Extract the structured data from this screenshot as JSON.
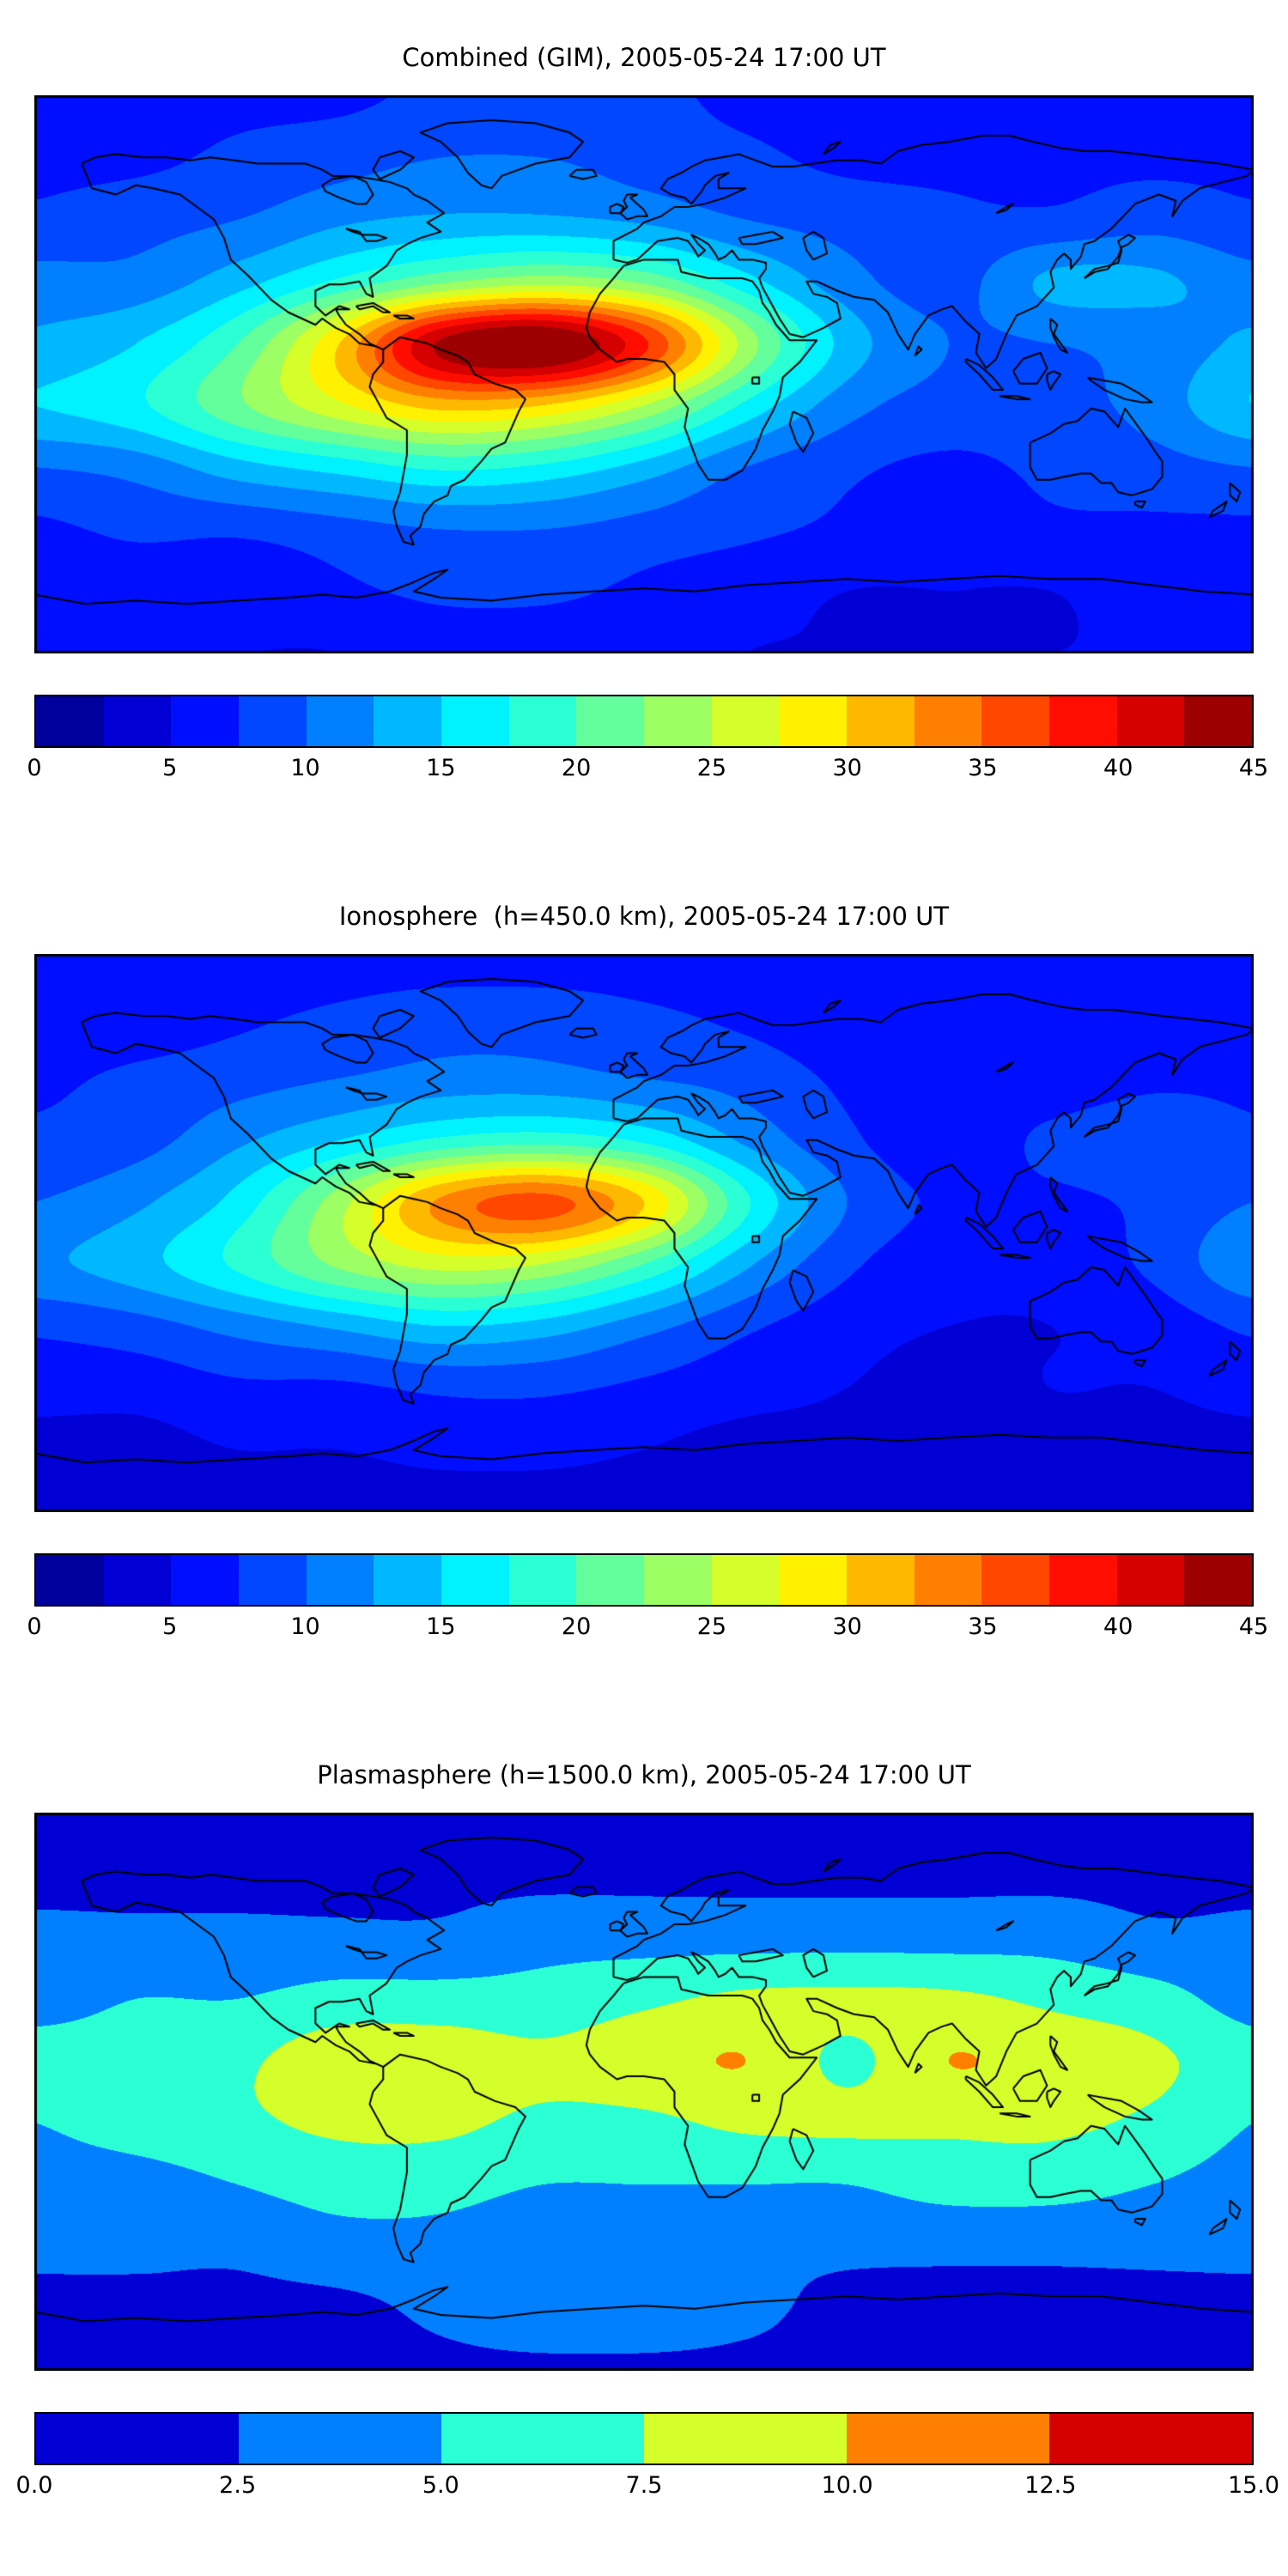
{
  "panels": [
    {
      "title": "Combined (GIM), 2005-05-24 17:00 UT",
      "colorbar_ticks": [
        "0",
        "5",
        "10",
        "15",
        "20",
        "25",
        "30",
        "35",
        "40",
        "45"
      ]
    },
    {
      "title": "Ionosphere  (h=450.0 km), 2005-05-24 17:00 UT",
      "colorbar_ticks": [
        "0",
        "5",
        "10",
        "15",
        "20",
        "25",
        "30",
        "35",
        "40",
        "45"
      ]
    },
    {
      "title": "Plasmasphere (h=1500.0 km), 2005-05-24 17:00 UT",
      "colorbar_ticks": [
        "0.0",
        "2.5",
        "5.0",
        "7.5",
        "10.0",
        "12.5",
        "15.0"
      ]
    }
  ],
  "chart_data": [
    {
      "type": "heatmap",
      "title": "Combined (GIM), 2005-05-24 17:00 UT",
      "projection": "equirectangular",
      "basemap": "world-coastlines",
      "colormap": "jet",
      "levels": {
        "min": 0,
        "max": 45,
        "step": 2.5
      },
      "colorbar_tick_values": [
        0,
        5,
        10,
        15,
        20,
        25,
        30,
        35,
        40,
        45
      ],
      "lon": [
        -180,
        -150,
        -120,
        -90,
        -60,
        -30,
        0,
        30,
        60,
        90,
        120,
        150,
        180
      ],
      "lat": [
        90,
        70,
        50,
        30,
        10,
        -10,
        -30,
        -50,
        -70,
        -90
      ],
      "values": [
        [
          7,
          7,
          7,
          7,
          8,
          8,
          8,
          7,
          7,
          7,
          7,
          7,
          7
        ],
        [
          7,
          7,
          8,
          9,
          10,
          10,
          9,
          8,
          7,
          7,
          7,
          7,
          7
        ],
        [
          8,
          9,
          10,
          12,
          13,
          13,
          12,
          10,
          9,
          8,
          8,
          9,
          8
        ],
        [
          11,
          11,
          14,
          18,
          22,
          24,
          22,
          16,
          11,
          9,
          13,
          13,
          11
        ],
        [
          13,
          15,
          20,
          30,
          43,
          46,
          38,
          24,
          14,
          10,
          10,
          11,
          13
        ],
        [
          15,
          17,
          22,
          27,
          31,
          30,
          25,
          17,
          11,
          9,
          9,
          11,
          15
        ],
        [
          10,
          11,
          14,
          16,
          18,
          17,
          14,
          10,
          8,
          7,
          8,
          9,
          10
        ],
        [
          7,
          8,
          8,
          9,
          10,
          10,
          9,
          8,
          7,
          6,
          7,
          7,
          7
        ],
        [
          6,
          6,
          6,
          7,
          8,
          8,
          7,
          6,
          5,
          5,
          5,
          6,
          6
        ],
        [
          5,
          5,
          5,
          5,
          6,
          6,
          6,
          5,
          5,
          5,
          5,
          5,
          5
        ]
      ]
    },
    {
      "type": "heatmap",
      "title": "Ionosphere  (h=450.0 km), 2005-05-24 17:00 UT",
      "projection": "equirectangular",
      "basemap": "world-coastlines",
      "colormap": "jet",
      "levels": {
        "min": 0,
        "max": 45,
        "step": 2.5
      },
      "colorbar_tick_values": [
        0,
        5,
        10,
        15,
        20,
        25,
        30,
        35,
        40,
        45
      ],
      "lon": [
        -180,
        -150,
        -120,
        -90,
        -60,
        -30,
        0,
        30,
        60,
        90,
        120,
        150,
        180
      ],
      "lat": [
        90,
        70,
        50,
        30,
        10,
        -10,
        -30,
        -50,
        -70,
        -90
      ],
      "values": [
        [
          6,
          6,
          6,
          6,
          6,
          6,
          6,
          6,
          6,
          6,
          6,
          6,
          6
        ],
        [
          6,
          6,
          7,
          8,
          9,
          9,
          8,
          7,
          6,
          6,
          6,
          6,
          6
        ],
        [
          7,
          8,
          9,
          10,
          11,
          11,
          10,
          9,
          7,
          6,
          6,
          7,
          7
        ],
        [
          8,
          9,
          12,
          15,
          18,
          19,
          17,
          12,
          8,
          6,
          8,
          9,
          8
        ],
        [
          10,
          12,
          16,
          24,
          33,
          36,
          30,
          18,
          10,
          7,
          7,
          8,
          10
        ],
        [
          12,
          14,
          18,
          23,
          26,
          25,
          20,
          13,
          8,
          6,
          6,
          8,
          12
        ],
        [
          8,
          9,
          11,
          13,
          15,
          14,
          11,
          8,
          6,
          5,
          5,
          6,
          8
        ],
        [
          6,
          6,
          7,
          7,
          8,
          8,
          7,
          6,
          5,
          4,
          5,
          5,
          6
        ],
        [
          4,
          4,
          5,
          5,
          6,
          6,
          5,
          4,
          4,
          3,
          4,
          4,
          4
        ],
        [
          3,
          3,
          3,
          3,
          3,
          3,
          3,
          3,
          3,
          3,
          3,
          3,
          3
        ]
      ]
    },
    {
      "type": "heatmap",
      "title": "Plasmasphere (h=1500.0 km), 2005-05-24 17:00 UT",
      "projection": "equirectangular",
      "basemap": "world-coastlines",
      "colormap": "jet",
      "levels": {
        "min": 0,
        "max": 15,
        "step": 2.5
      },
      "colorbar_tick_values": [
        0,
        2.5,
        5,
        7.5,
        10,
        12.5,
        15
      ],
      "lon": [
        -180,
        -150,
        -120,
        -90,
        -60,
        -30,
        0,
        30,
        60,
        90,
        120,
        150,
        180
      ],
      "lat": [
        90,
        70,
        50,
        30,
        10,
        -10,
        -30,
        -50,
        -70,
        -90
      ],
      "values": [
        [
          2,
          2,
          2,
          2,
          2,
          2,
          2,
          2,
          2,
          2,
          2,
          2,
          2
        ],
        [
          2,
          2,
          2,
          2,
          2,
          2,
          2,
          2,
          2,
          2,
          2,
          2,
          2
        ],
        [
          3,
          3,
          3,
          3,
          3,
          4,
          4,
          4,
          4,
          4,
          4,
          3,
          3
        ],
        [
          4,
          5,
          5,
          6,
          6,
          6,
          7,
          8,
          8,
          8,
          7,
          6,
          4
        ],
        [
          6,
          6,
          7,
          9,
          9,
          8,
          9,
          10,
          7,
          10,
          9,
          8,
          6
        ],
        [
          5,
          6,
          7,
          8,
          8,
          7,
          7,
          8,
          8,
          8,
          8,
          7,
          5
        ],
        [
          4,
          4,
          5,
          6,
          6,
          5,
          5,
          5,
          5,
          6,
          6,
          5,
          4
        ],
        [
          3,
          3,
          3,
          4,
          4,
          3,
          3,
          3,
          3,
          3,
          3,
          3,
          3
        ],
        [
          2,
          2,
          2,
          2,
          3,
          4,
          4,
          3,
          2,
          2,
          2,
          2,
          2
        ],
        [
          2,
          2,
          2,
          2,
          2,
          2,
          2,
          2,
          2,
          2,
          2,
          2,
          2
        ]
      ]
    }
  ]
}
